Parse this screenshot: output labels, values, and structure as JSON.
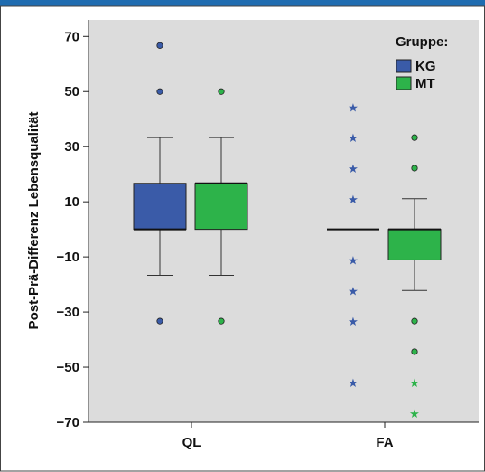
{
  "chart_data": {
    "type": "boxplot",
    "ylabel": "Post-Prä-Differenz Lebensqualität",
    "xlabel": "",
    "categories": [
      "QL",
      "FA"
    ],
    "ylim": [
      -70,
      76
    ],
    "yticks": [
      70,
      50,
      30,
      10,
      -10,
      -30,
      -50,
      -70
    ],
    "ytick_labels": [
      "70",
      "50",
      "30",
      "10",
      "−10",
      "−30",
      "−50",
      "−70"
    ],
    "grid": false,
    "legend": {
      "title": "Gruppe:",
      "position": "top-right"
    },
    "series": [
      {
        "name": "KG",
        "color": "#3a5ba8",
        "boxes": [
          {
            "category": "QL",
            "min": -16.7,
            "q1": 0,
            "median": 0,
            "q3": 16.7,
            "max": 33.3,
            "outliers": [
              66.7,
              50,
              -33.3
            ],
            "extremes": []
          },
          {
            "category": "FA",
            "min": 0,
            "q1": 0,
            "median": 0,
            "q3": 0,
            "max": 0,
            "outliers": [],
            "extremes": [
              44.4,
              33.3,
              22.2,
              11.1,
              -11.1,
              -22.2,
              -33.3,
              -55.6
            ]
          }
        ]
      },
      {
        "name": "MT",
        "color": "#2db34a",
        "boxes": [
          {
            "category": "QL",
            "min": -16.7,
            "q1": 0,
            "median": 16.7,
            "q3": 16.7,
            "max": 33.3,
            "outliers": [
              50,
              -33.3
            ],
            "extremes": []
          },
          {
            "category": "FA",
            "min": -22.2,
            "q1": -11.1,
            "median": 0,
            "q3": 0,
            "max": 11.1,
            "outliers": [
              33.3,
              22.2,
              -33.3,
              -44.4
            ],
            "extremes": [
              -55.6,
              -66.7
            ]
          }
        ]
      }
    ]
  }
}
